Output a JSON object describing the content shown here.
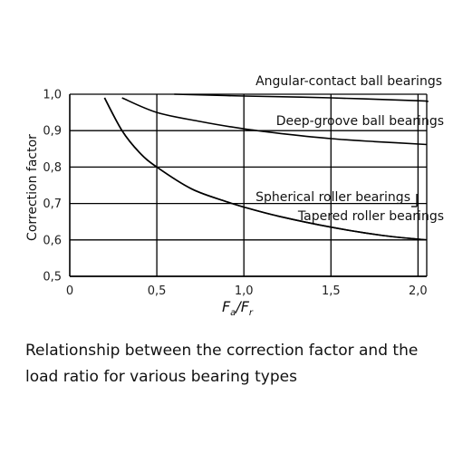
{
  "chart_data": {
    "type": "line",
    "ylabel": "Correction factor",
    "xlabel": {
      "main": "F",
      "sub1": "a",
      "slash": "/",
      "main2": "F",
      "sub2": "r"
    },
    "x_ticks": [
      "0",
      "0,5",
      "1,0",
      "1,5",
      "2,0"
    ],
    "x_tick_values": [
      0,
      0.5,
      1.0,
      1.5,
      2.0
    ],
    "y_ticks": [
      "0,5",
      "0,6",
      "0,7",
      "0,8",
      "0,9",
      "1,0"
    ],
    "y_tick_values": [
      0.5,
      0.6,
      0.7,
      0.8,
      0.9,
      1.0
    ],
    "xlim": [
      0,
      2.05
    ],
    "ylim": [
      0.5,
      1.0
    ],
    "grid": true,
    "series": [
      {
        "name": "Angular-contact ball bearings",
        "x": [
          0.6,
          1.0,
          1.5,
          2.0,
          2.05
        ],
        "y": [
          1.0,
          0.995,
          0.99,
          0.982,
          0.98
        ]
      },
      {
        "name": "Deep-groove ball bearings",
        "x": [
          0.3,
          0.5,
          0.75,
          1.0,
          1.25,
          1.5,
          1.75,
          2.05
        ],
        "y": [
          0.99,
          0.95,
          0.925,
          0.905,
          0.89,
          0.878,
          0.87,
          0.862
        ]
      },
      {
        "name": "Spherical roller bearings",
        "x": [
          0.2,
          0.3,
          0.4,
          0.5,
          0.7,
          0.9,
          1.0,
          1.2,
          1.5,
          1.8,
          2.05
        ],
        "y": [
          0.99,
          0.9,
          0.84,
          0.8,
          0.74,
          0.705,
          0.69,
          0.665,
          0.635,
          0.612,
          0.6
        ]
      },
      {
        "name": "Tapered roller bearings",
        "x": [
          0.2,
          0.3,
          0.4,
          0.5,
          0.7,
          0.9,
          1.0,
          1.2,
          1.5,
          1.8,
          2.05
        ],
        "y": [
          0.99,
          0.9,
          0.84,
          0.8,
          0.74,
          0.705,
          0.69,
          0.665,
          0.635,
          0.612,
          0.6
        ]
      }
    ]
  },
  "caption": {
    "line1": "Relationship between the correction factor and the",
    "line2": "load ratio for various bearing types"
  }
}
